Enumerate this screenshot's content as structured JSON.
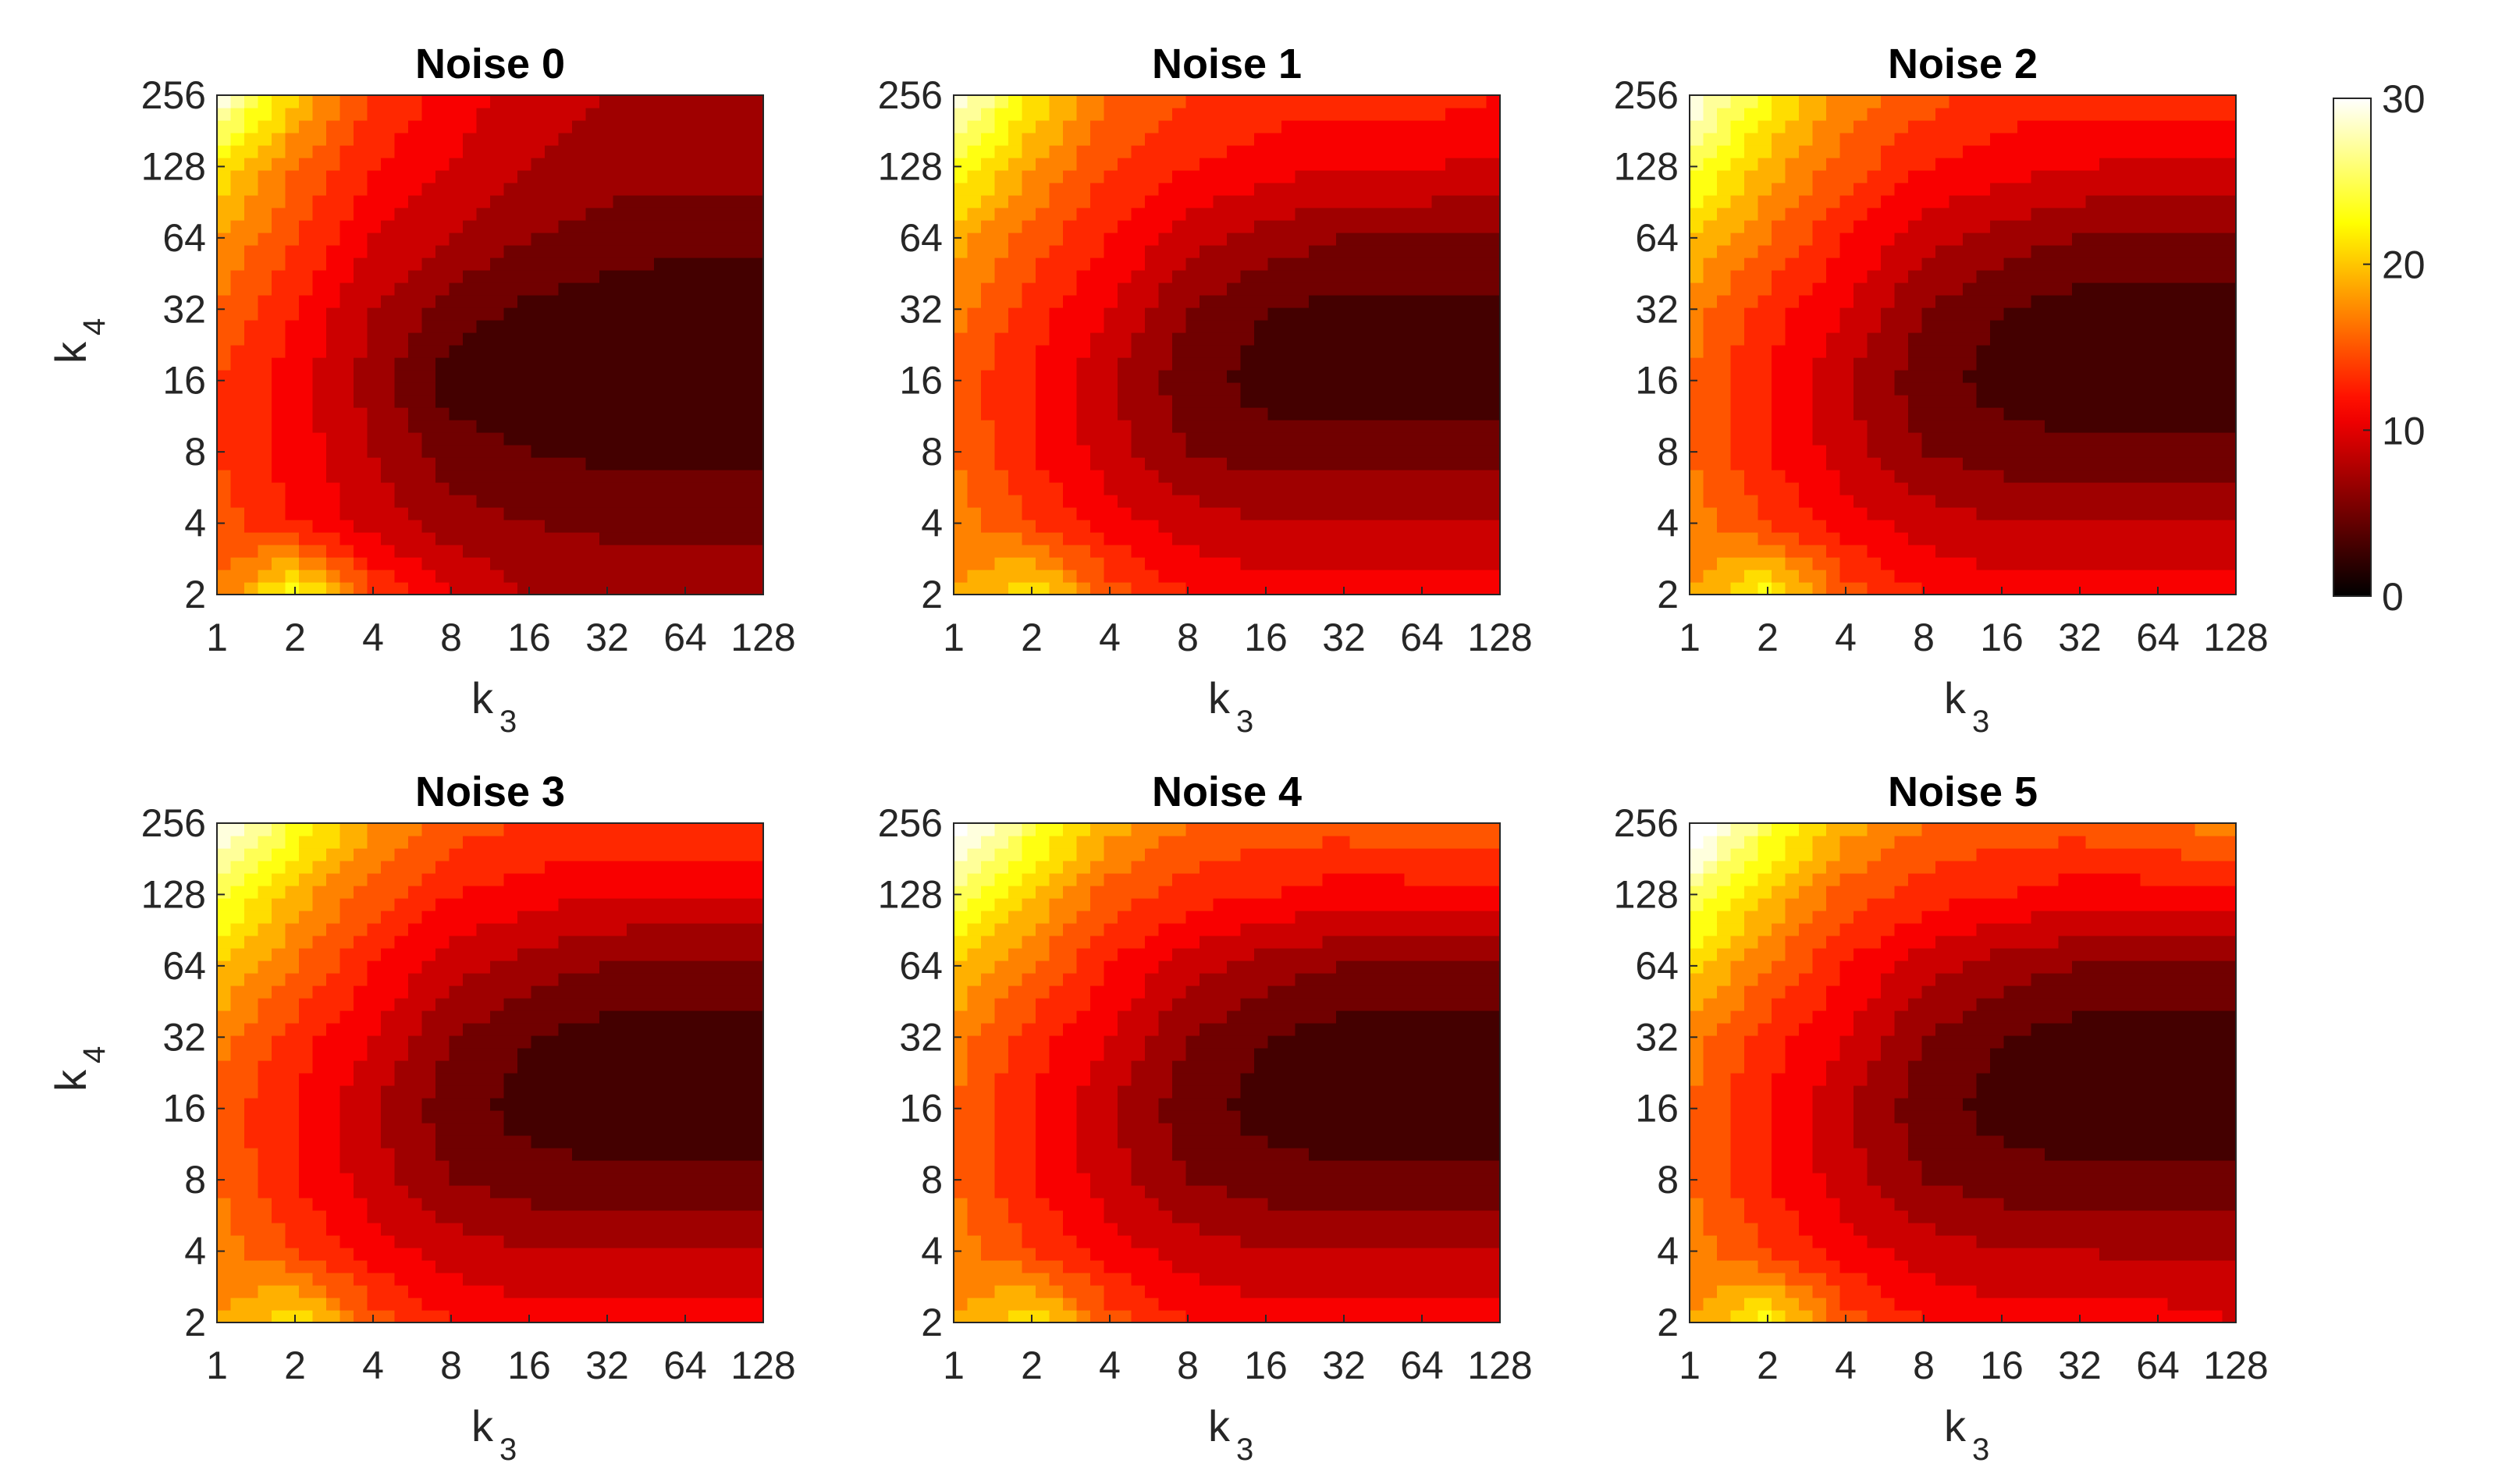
{
  "chart_data": {
    "type": "heatmap",
    "style": "filled contour",
    "colormap": "hot",
    "contour_levels": [
      2,
      4,
      6,
      8,
      10,
      12,
      14,
      16,
      18,
      20,
      22,
      24,
      26,
      28,
      30
    ],
    "x_ticks": [
      "1",
      "2",
      "4",
      "8",
      "16",
      "32",
      "64",
      "128"
    ],
    "y_ticks": [
      "2",
      "4",
      "8",
      "16",
      "32",
      "64",
      "128",
      "256"
    ],
    "xlabel": "k",
    "xlabel_sub": "3",
    "ylabel": "k",
    "ylabel_sub": "4",
    "colorbar": {
      "ticks": [
        "0",
        "10",
        "20",
        "30"
      ],
      "range": [
        0,
        30
      ]
    },
    "panels": [
      {
        "title": "Noise 0",
        "x_values": [
          1,
          2,
          4,
          8,
          16,
          32,
          64,
          128
        ],
        "y_values": [
          2,
          4,
          8,
          16,
          32,
          64,
          128,
          256
        ],
        "z": [
          [
            16,
            24,
            14,
            10,
            8,
            7.5,
            7.5,
            7.5
          ],
          [
            15,
            12,
            9,
            7,
            6,
            5.5,
            5.5,
            5.5
          ],
          [
            14,
            11,
            8,
            5,
            4,
            3.5,
            3.5,
            3.5
          ],
          [
            14,
            11,
            7,
            3,
            2,
            2,
            2,
            2
          ],
          [
            16,
            12,
            8,
            5,
            3.5,
            3,
            2.5,
            2.5
          ],
          [
            18,
            14,
            10,
            8,
            6,
            5,
            4.5,
            4.5
          ],
          [
            22,
            16,
            12,
            10,
            8,
            7,
            7,
            7
          ],
          [
            30,
            20,
            14,
            11,
            9,
            8,
            8,
            8
          ]
        ]
      },
      {
        "title": "Noise 1",
        "x_values": [
          1,
          2,
          4,
          8,
          16,
          32,
          64,
          128
        ],
        "y_values": [
          2,
          4,
          8,
          16,
          32,
          64,
          128,
          256
        ],
        "z": [
          [
            18,
            22,
            15,
            12,
            11,
            11,
            11,
            11
          ],
          [
            17,
            14,
            11,
            9,
            8,
            8,
            8,
            8
          ],
          [
            16,
            12,
            9,
            6,
            5,
            5,
            5,
            5
          ],
          [
            15,
            12,
            8,
            5,
            3,
            3,
            3,
            3
          ],
          [
            17,
            13,
            10,
            6,
            4,
            3.5,
            3.5,
            3.5
          ],
          [
            19,
            15,
            12,
            9,
            7,
            6,
            6,
            6
          ],
          [
            24,
            18,
            14,
            12,
            11,
            10,
            10,
            9.5
          ],
          [
            30,
            22,
            16,
            14,
            13,
            13,
            13,
            12
          ]
        ]
      },
      {
        "title": "Noise 2",
        "x_values": [
          1,
          2,
          4,
          8,
          16,
          32,
          64,
          128
        ],
        "y_values": [
          2,
          4,
          8,
          16,
          32,
          64,
          128,
          256
        ],
        "z": [
          [
            18,
            23,
            15,
            12,
            11,
            11,
            11,
            11
          ],
          [
            17,
            14,
            11,
            9,
            8,
            8,
            8,
            8
          ],
          [
            16,
            12,
            9,
            6,
            5,
            4.5,
            4.5,
            4.5
          ],
          [
            16,
            12,
            8,
            5,
            3,
            2.5,
            2.5,
            2.5
          ],
          [
            17,
            13,
            10,
            6,
            4,
            3,
            3,
            3
          ],
          [
            20,
            16,
            12,
            9,
            7,
            6,
            5.5,
            5.5
          ],
          [
            25,
            19,
            15,
            12,
            11,
            10,
            9.5,
            9.5
          ],
          [
            30,
            23,
            17,
            15,
            13,
            13,
            13,
            13
          ]
        ]
      },
      {
        "title": "Noise 3",
        "x_values": [
          1,
          2,
          4,
          8,
          16,
          32,
          64,
          128
        ],
        "y_values": [
          2,
          4,
          8,
          16,
          32,
          64,
          128,
          256
        ],
        "z": [
          [
            18,
            22,
            15,
            12,
            11,
            11,
            11,
            11
          ],
          [
            17,
            14,
            11,
            9,
            8,
            8,
            8,
            8
          ],
          [
            16,
            12,
            9,
            6,
            5,
            4.5,
            4.5,
            4.5
          ],
          [
            15,
            12,
            8,
            5,
            3,
            2.5,
            2.5,
            2.5
          ],
          [
            17,
            13,
            10,
            6,
            4,
            3,
            3,
            3
          ],
          [
            20,
            16,
            12,
            9,
            7,
            6,
            5.5,
            5.5
          ],
          [
            25,
            19,
            15,
            12,
            11,
            10,
            10,
            10
          ],
          [
            31,
            24,
            18,
            15,
            14,
            14,
            14,
            14
          ]
        ]
      },
      {
        "title": "Noise 4",
        "x_values": [
          1,
          2,
          4,
          8,
          16,
          32,
          64,
          128
        ],
        "y_values": [
          2,
          4,
          8,
          16,
          32,
          64,
          128,
          256
        ],
        "z": [
          [
            18,
            22,
            15,
            12,
            11,
            11,
            11,
            11
          ],
          [
            17,
            14,
            11,
            9,
            8,
            8,
            8,
            8
          ],
          [
            16,
            12,
            9,
            6,
            5,
            4.5,
            4.5,
            4.5
          ],
          [
            16,
            12,
            8,
            5,
            3,
            2.5,
            2.5,
            2.5
          ],
          [
            17,
            13,
            10,
            6,
            4,
            3,
            3,
            3
          ],
          [
            20,
            16,
            12,
            9,
            7,
            6,
            5.5,
            5.5
          ],
          [
            26,
            20,
            15,
            13,
            12,
            11,
            11,
            11
          ],
          [
            32,
            25,
            19,
            16,
            15,
            15,
            16,
            16
          ]
        ]
      },
      {
        "title": "Noise 5",
        "x_values": [
          1,
          2,
          4,
          8,
          16,
          32,
          64,
          128
        ],
        "y_values": [
          2,
          4,
          8,
          16,
          32,
          64,
          128,
          256
        ],
        "z": [
          [
            18,
            23,
            15,
            12,
            11,
            11,
            11,
            10
          ],
          [
            17,
            14,
            11,
            9,
            8,
            8,
            7.5,
            7.5
          ],
          [
            16,
            12,
            9,
            6,
            5,
            4.5,
            4.5,
            4.5
          ],
          [
            16,
            12,
            8,
            5,
            3,
            2.5,
            2.5,
            2.5
          ],
          [
            17,
            13,
            10,
            6,
            4,
            3,
            3,
            3
          ],
          [
            21,
            16,
            12,
            9,
            7,
            6,
            5.5,
            5.5
          ],
          [
            26,
            20,
            15,
            13,
            12,
            11,
            11,
            11
          ],
          [
            33,
            25,
            19,
            16,
            15,
            15,
            16,
            17
          ]
        ]
      }
    ]
  }
}
